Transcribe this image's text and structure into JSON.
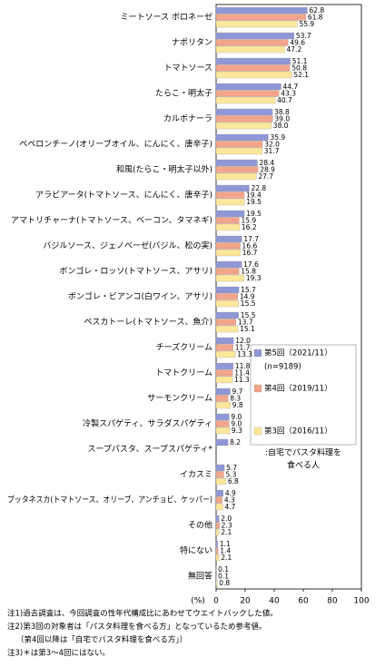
{
  "chart_data": {
    "type": "bar",
    "orientation": "horizontal",
    "categories": [
      "ミートソース ボロネーゼ",
      "ナポリタン",
      "トマトソース",
      "たらこ・明太子",
      "カルボナーラ",
      "ペペロンチーノ(オリーブオイル、にんにく、唐辛子)",
      "和風(たらこ・明太子以外)",
      "アラビアータ(トマトソース、にんにく、唐辛子)",
      "アマトリチャーナ(トマトソース、ベーコン、タマネギ)",
      "バジルソース、ジェノベーゼ(バジル、松の実)",
      "ボンゴレ・ロッソ(トマトソース、アサリ)",
      "ボンゴレ・ビアンコ(白ワイン、アサリ)",
      "ペスカトーレ(トマトソース、魚介)",
      "チーズクリーム",
      "トマトクリーム",
      "サーモンクリーム",
      "冷製スパゲティ、サラダスパゲティ",
      "スープパスタ、スープスパゲティ*",
      "イカスミ",
      "プッタネスカ(トマトソース、オリーブ、アンチョビ、ケッパー)",
      "その他",
      "特にない",
      "無回答"
    ],
    "series": [
      {
        "name": "第5回（2021/11）",
        "color": "#8f97d6",
        "values": [
          62.8,
          53.7,
          51.1,
          44.7,
          38.8,
          35.9,
          28.4,
          22.8,
          19.5,
          17.7,
          17.6,
          15.7,
          15.5,
          12.0,
          11.8,
          9.7,
          9.0,
          8.2,
          5.7,
          4.9,
          2.0,
          1.1,
          0.1
        ],
        "value_labels": [
          "62.8",
          "53.7",
          "51.1",
          "44.7",
          "38.8",
          "35.9",
          "28.4",
          "22.8",
          "19.5",
          "17.7",
          "17.6",
          "15.7",
          "15.5",
          "12.0",
          "11.8",
          "9.7",
          "9.0",
          "8.2",
          "5.7",
          "4.9",
          "2.0",
          "1.1",
          "0.1"
        ]
      },
      {
        "name": "第4回（2019/11）",
        "color": "#f2a58a",
        "values": [
          61.8,
          49.6,
          50.8,
          43.3,
          39.0,
          32.0,
          28.9,
          19.4,
          15.9,
          16.6,
          15.8,
          14.9,
          13.7,
          11.7,
          11.4,
          8.3,
          9.0,
          null,
          5.3,
          4.3,
          2.3,
          1.4,
          0.1
        ],
        "value_labels": [
          "61.8",
          "49.6",
          "50.8",
          "43.3",
          "39.0",
          "32.0",
          "28.9",
          "19.4",
          "15.9",
          "16.6",
          "15.8",
          "14.9",
          "13.7",
          "11.7",
          "11.4",
          "8.3",
          "9.0",
          null,
          "5.3",
          "4.3",
          "2.3",
          "1.4",
          "0.1"
        ]
      },
      {
        "name": "第3回（2016/11）",
        "color": "#fde79a",
        "values": [
          55.9,
          47.2,
          52.1,
          40.7,
          38.0,
          31.7,
          27.7,
          19.5,
          16.2,
          16.7,
          19.3,
          15.5,
          15.1,
          13.3,
          11.3,
          9.8,
          9.3,
          null,
          6.8,
          4.7,
          2.1,
          2.1,
          0.8
        ],
        "value_labels": [
          "55.9",
          "47.2",
          "52.1",
          "40.7",
          "38.0",
          "31.7",
          "27.7",
          "19.5",
          "16.2",
          "16.7",
          "19.3",
          "15.5",
          "15.1",
          "13.3",
          "11.3",
          "9.8",
          "9.3",
          null,
          "6.8",
          "4.7",
          "2.1",
          "2.1",
          "0.8"
        ]
      }
    ],
    "legend_sample": "(n=9189)",
    "legend_note": [
      ":自宅でパスタ料理を",
      "食べる人"
    ],
    "x_label": "(%)",
    "xlim": [
      0,
      100
    ],
    "xticks": [
      0,
      20,
      40,
      60,
      80,
      100
    ],
    "footnotes": [
      "注1)過去調査は、今回調査の性年代構成比にあわせてウエイトバックした値。",
      "注2)第3回の対象者は「パスタ料理を食べる方」となっているため参考値。",
      "（第4回以降は「自宅でパスタ料理を食べる方」）",
      "注3)＊は第3～4回にはない。"
    ]
  }
}
